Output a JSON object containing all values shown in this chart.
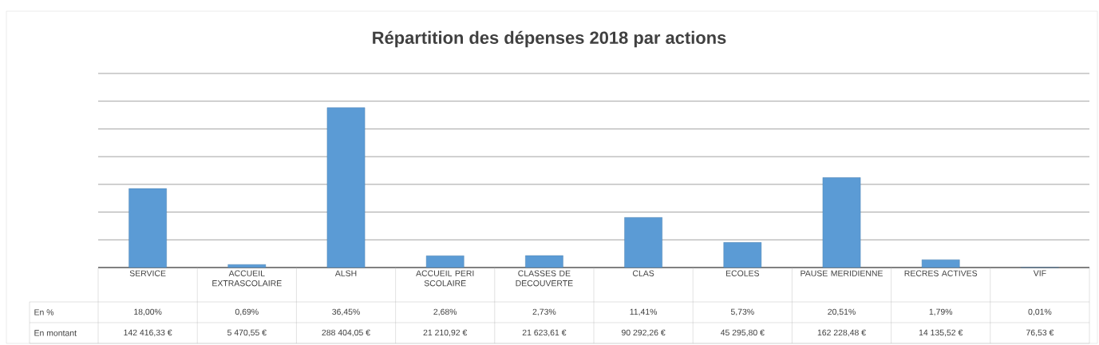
{
  "chart_data": {
    "type": "bar",
    "title": "Répartition des dépenses 2018 par actions",
    "categories": [
      "SERVICE",
      "ACCUEIL EXTRASCOLAIRE",
      "ALSH",
      "ACCUEIL PERI SCOLAIRE",
      "CLASSES DE DECOUVERTE",
      "CLAS",
      "ECOLES",
      "PAUSE MERIDIENNE",
      "RECRES ACTIVES",
      "VIF"
    ],
    "values": [
      142416.33,
      5470.55,
      288404.05,
      21210.92,
      21623.61,
      90292.26,
      45295.8,
      162228.48,
      14135.52,
      76.53
    ],
    "value_labels": [
      "142 416,33 €",
      "5 470,55 €",
      "288 404,05 €",
      "21 210,92 €",
      "21 623,61 €",
      "90 292,26 €",
      "45 295,80 €",
      "162 228,48 €",
      "14 135,52 €",
      "76,53 €"
    ],
    "annotations": [
      "En %",
      "En montant",
      "18,00%",
      "0,69%",
      "36,45%",
      "2,68%",
      "2,73%",
      "11,41%",
      "5,73%",
      "20,51%",
      "1,79%",
      "0,01%"
    ],
    "color": "#5b9bd5",
    "ylim": [
      0,
      350000
    ],
    "yticks": [
      {
        "value": 0,
        "label": null
      },
      {
        "value": 50000,
        "label": null
      },
      {
        "value": 100000,
        "label": null
      },
      {
        "value": 150000,
        "label": null
      },
      {
        "value": 200000,
        "label": null
      },
      {
        "value": 250000,
        "label": null
      },
      {
        "value": 300000,
        "label": null
      },
      {
        "value": 350000,
        "label": null
      }
    ],
    "grid": "y",
    "tick_labels": "x"
  }
}
